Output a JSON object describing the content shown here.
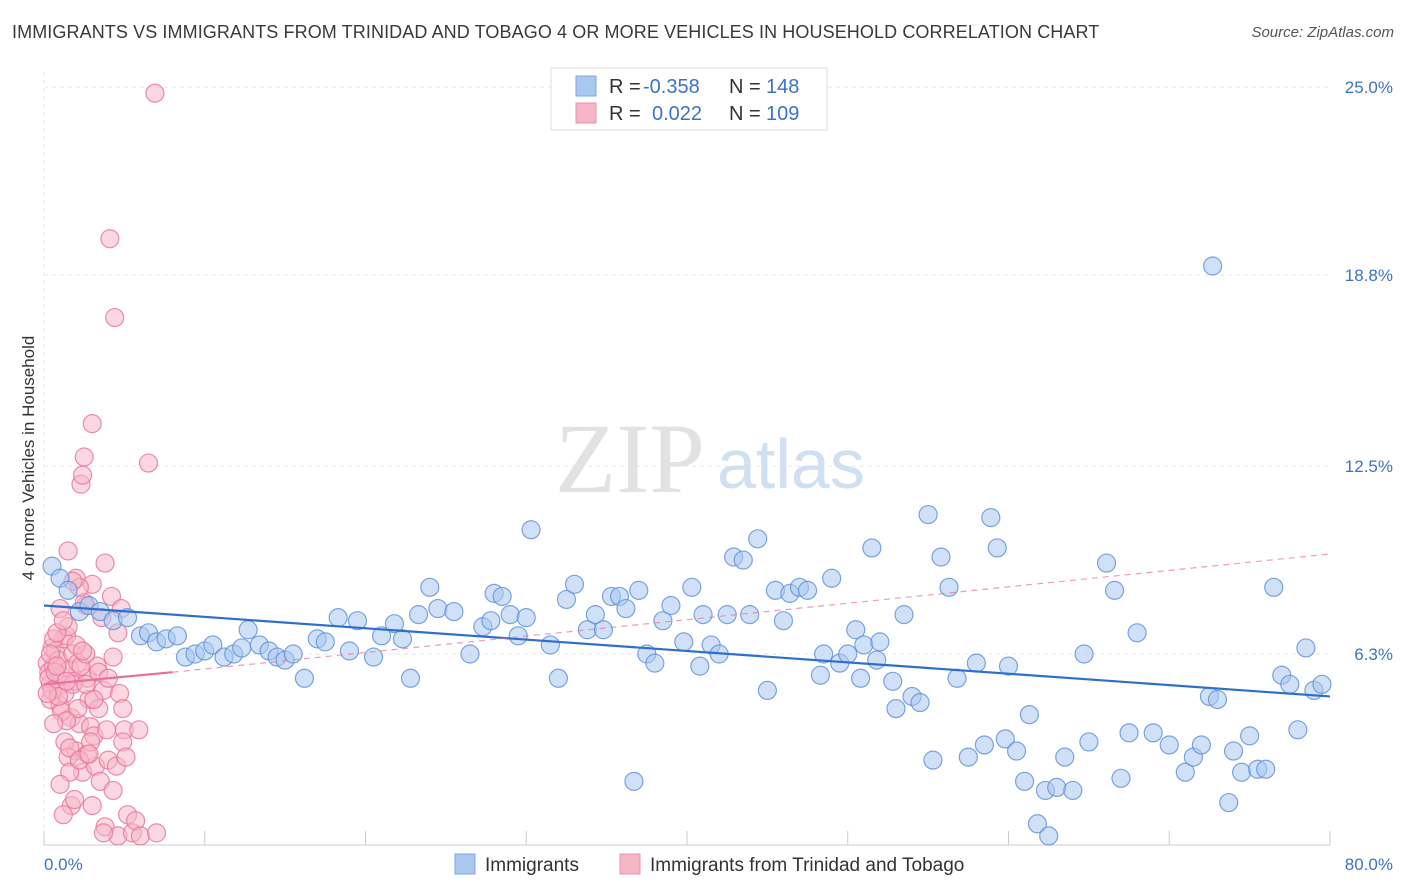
{
  "header": {
    "title": "IMMIGRANTS VS IMMIGRANTS FROM TRINIDAD AND TOBAGO 4 OR MORE VEHICLES IN HOUSEHOLD CORRELATION CHART",
    "source": "Source: ZipAtlas.com"
  },
  "watermark": {
    "zip": "ZIP",
    "atlas": "atlas"
  },
  "stats": [
    {
      "r_label": "R =",
      "r_value": "-0.358",
      "n_label": "N =",
      "n_value": "148",
      "color": "#a9c8f0"
    },
    {
      "r_label": "R =",
      "r_value": "0.022",
      "n_label": "N =",
      "n_value": "109",
      "color": "#f5b6c8"
    }
  ],
  "chart_data": {
    "type": "scatter",
    "title": "IMMIGRANTS VS IMMIGRANTS FROM TRINIDAD AND TOBAGO 4 OR MORE VEHICLES IN HOUSEHOLD CORRELATION CHART",
    "xlabel": "",
    "ylabel": "4 or more Vehicles in Household",
    "xlim": [
      0,
      80
    ],
    "ylim": [
      0,
      25.5
    ],
    "x_tick_labels": [
      "0.0%",
      "80.0%"
    ],
    "y_ticks": [
      6.3,
      12.5,
      18.8,
      25.0
    ],
    "y_tick_labels": [
      "6.3%",
      "12.5%",
      "18.8%",
      "25.0%"
    ],
    "grid": true,
    "legend_position": "bottom-center",
    "series": [
      {
        "name": "Immigrants",
        "color": "#5b8fd9",
        "fill": "#a9c8f0",
        "trend": {
          "x": [
            0,
            80
          ],
          "y": [
            7.9,
            4.9
          ]
        },
        "points": [
          [
            0.5,
            9.2
          ],
          [
            1.0,
            8.8
          ],
          [
            1.5,
            8.4
          ],
          [
            2.2,
            7.7
          ],
          [
            2.8,
            7.9
          ],
          [
            3.5,
            7.7
          ],
          [
            4.3,
            7.4
          ],
          [
            5.2,
            7.5
          ],
          [
            6.0,
            6.9
          ],
          [
            6.5,
            7.0
          ],
          [
            7.0,
            6.7
          ],
          [
            7.6,
            6.8
          ],
          [
            8.3,
            6.9
          ],
          [
            8.8,
            6.2
          ],
          [
            9.4,
            6.3
          ],
          [
            10.0,
            6.4
          ],
          [
            10.5,
            6.6
          ],
          [
            11.2,
            6.2
          ],
          [
            11.8,
            6.3
          ],
          [
            12.3,
            6.5
          ],
          [
            12.7,
            7.1
          ],
          [
            13.4,
            6.6
          ],
          [
            14.0,
            6.4
          ],
          [
            14.5,
            6.2
          ],
          [
            15.0,
            6.1
          ],
          [
            15.5,
            6.3
          ],
          [
            16.2,
            5.5
          ],
          [
            17.0,
            6.8
          ],
          [
            17.5,
            6.7
          ],
          [
            18.3,
            7.5
          ],
          [
            19.0,
            6.4
          ],
          [
            19.5,
            7.4
          ],
          [
            20.5,
            6.2
          ],
          [
            21.0,
            6.9
          ],
          [
            21.8,
            7.3
          ],
          [
            22.3,
            6.8
          ],
          [
            22.8,
            5.5
          ],
          [
            23.3,
            7.6
          ],
          [
            24.0,
            8.5
          ],
          [
            24.5,
            7.8
          ],
          [
            25.5,
            7.7
          ],
          [
            26.5,
            6.3
          ],
          [
            27.3,
            7.2
          ],
          [
            27.8,
            7.4
          ],
          [
            28.0,
            8.3
          ],
          [
            28.5,
            8.2
          ],
          [
            29.0,
            7.6
          ],
          [
            29.5,
            6.9
          ],
          [
            30.0,
            7.5
          ],
          [
            30.3,
            10.4
          ],
          [
            31.5,
            6.6
          ],
          [
            32.0,
            5.5
          ],
          [
            32.5,
            8.1
          ],
          [
            33.0,
            8.6
          ],
          [
            33.8,
            7.1
          ],
          [
            34.3,
            7.6
          ],
          [
            34.8,
            7.1
          ],
          [
            35.3,
            8.2
          ],
          [
            35.8,
            8.2
          ],
          [
            36.2,
            7.8
          ],
          [
            37.0,
            8.4
          ],
          [
            37.5,
            6.3
          ],
          [
            38.0,
            6.0
          ],
          [
            38.5,
            7.4
          ],
          [
            39.0,
            7.9
          ],
          [
            39.8,
            6.7
          ],
          [
            40.3,
            8.5
          ],
          [
            40.8,
            5.9
          ],
          [
            41.0,
            7.6
          ],
          [
            41.5,
            6.6
          ],
          [
            42.0,
            6.3
          ],
          [
            42.5,
            7.6
          ],
          [
            42.9,
            9.5
          ],
          [
            43.5,
            9.4
          ],
          [
            43.9,
            7.6
          ],
          [
            44.4,
            10.1
          ],
          [
            45.0,
            5.1
          ],
          [
            45.5,
            8.4
          ],
          [
            46.0,
            7.4
          ],
          [
            46.4,
            8.3
          ],
          [
            47.0,
            8.5
          ],
          [
            47.5,
            8.4
          ],
          [
            48.3,
            5.6
          ],
          [
            48.5,
            6.3
          ],
          [
            49.0,
            8.8
          ],
          [
            49.5,
            6.0
          ],
          [
            50.0,
            6.3
          ],
          [
            50.5,
            7.1
          ],
          [
            50.8,
            5.5
          ],
          [
            51.0,
            6.6
          ],
          [
            51.5,
            9.8
          ],
          [
            51.8,
            6.1
          ],
          [
            52.0,
            6.7
          ],
          [
            52.8,
            5.4
          ],
          [
            53.0,
            4.5
          ],
          [
            53.5,
            7.6
          ],
          [
            54.0,
            4.9
          ],
          [
            54.5,
            4.7
          ],
          [
            55.0,
            10.9
          ],
          [
            55.3,
            2.8
          ],
          [
            55.8,
            9.5
          ],
          [
            56.3,
            8.5
          ],
          [
            56.8,
            5.5
          ],
          [
            57.5,
            2.9
          ],
          [
            58.0,
            6.0
          ],
          [
            58.5,
            3.3
          ],
          [
            58.9,
            10.8
          ],
          [
            59.3,
            9.8
          ],
          [
            59.8,
            3.5
          ],
          [
            60.5,
            3.1
          ],
          [
            61.0,
            2.1
          ],
          [
            61.3,
            4.3
          ],
          [
            61.8,
            0.7
          ],
          [
            62.3,
            1.8
          ],
          [
            62.5,
            0.3
          ],
          [
            63.0,
            1.9
          ],
          [
            63.5,
            2.9
          ],
          [
            64.0,
            1.8
          ],
          [
            64.7,
            6.3
          ],
          [
            65.0,
            3.4
          ],
          [
            66.1,
            9.3
          ],
          [
            66.6,
            8.4
          ],
          [
            67.0,
            2.2
          ],
          [
            67.5,
            3.7
          ],
          [
            68.0,
            7.0
          ],
          [
            69.0,
            3.7
          ],
          [
            70.0,
            3.3
          ],
          [
            71.0,
            2.4
          ],
          [
            71.5,
            2.9
          ],
          [
            72.0,
            3.3
          ],
          [
            72.5,
            4.9
          ],
          [
            73.0,
            4.8
          ],
          [
            73.7,
            1.4
          ],
          [
            74.0,
            3.1
          ],
          [
            74.5,
            2.4
          ],
          [
            75.0,
            3.6
          ],
          [
            75.5,
            2.5
          ],
          [
            76.0,
            2.5
          ],
          [
            76.5,
            8.5
          ],
          [
            77.0,
            5.6
          ],
          [
            77.5,
            5.3
          ],
          [
            78.0,
            3.8
          ],
          [
            78.5,
            6.5
          ],
          [
            79.0,
            5.1
          ],
          [
            72.7,
            19.1
          ],
          [
            79.5,
            5.3
          ],
          [
            60.0,
            5.9
          ],
          [
            36.7,
            2.1
          ]
        ]
      },
      {
        "name": "Immigrants from Trinidad and Tobago",
        "color": "#e8709a",
        "fill": "#f5b6c8",
        "trend": {
          "x": [
            0,
            8
          ],
          "y": [
            5.3,
            5.7
          ]
        },
        "trend_ext": {
          "x": [
            8,
            80
          ],
          "y": [
            5.7,
            9.6
          ]
        },
        "points": [
          [
            0.2,
            6.0
          ],
          [
            0.3,
            5.7
          ],
          [
            0.4,
            5.3
          ],
          [
            0.5,
            6.5
          ],
          [
            0.6,
            5.9
          ],
          [
            0.7,
            6.4
          ],
          [
            0.8,
            5.2
          ],
          [
            0.9,
            6.1
          ],
          [
            1.0,
            7.8
          ],
          [
            1.0,
            4.6
          ],
          [
            1.1,
            5.6
          ],
          [
            1.2,
            6.8
          ],
          [
            1.3,
            5.0
          ],
          [
            1.4,
            6.9
          ],
          [
            1.5,
            9.7
          ],
          [
            1.5,
            7.2
          ],
          [
            1.6,
            5.8
          ],
          [
            1.7,
            4.2
          ],
          [
            1.8,
            6.3
          ],
          [
            1.9,
            5.4
          ],
          [
            2.0,
            8.8
          ],
          [
            2.0,
            3.1
          ],
          [
            2.1,
            6.0
          ],
          [
            2.2,
            4.0
          ],
          [
            2.3,
            11.9
          ],
          [
            2.4,
            12.2
          ],
          [
            2.4,
            2.4
          ],
          [
            2.5,
            12.8
          ],
          [
            2.6,
            7.9
          ],
          [
            2.7,
            5.5
          ],
          [
            2.8,
            4.8
          ],
          [
            2.9,
            3.9
          ],
          [
            3.0,
            13.9
          ],
          [
            3.0,
            8.6
          ],
          [
            3.1,
            3.6
          ],
          [
            3.2,
            2.6
          ],
          [
            3.3,
            5.9
          ],
          [
            3.4,
            4.5
          ],
          [
            3.5,
            2.1
          ],
          [
            3.6,
            7.5
          ],
          [
            3.7,
            5.1
          ],
          [
            3.8,
            9.3
          ],
          [
            3.8,
            0.6
          ],
          [
            3.9,
            3.8
          ],
          [
            4.0,
            2.8
          ],
          [
            4.1,
            20.0
          ],
          [
            4.2,
            8.2
          ],
          [
            4.3,
            6.2
          ],
          [
            4.4,
            17.4
          ],
          [
            4.5,
            2.6
          ],
          [
            4.6,
            0.3
          ],
          [
            4.7,
            5.0
          ],
          [
            4.8,
            7.8
          ],
          [
            4.9,
            4.5
          ],
          [
            5.0,
            3.8
          ],
          [
            5.2,
            1.0
          ],
          [
            5.5,
            0.4
          ],
          [
            5.7,
            0.8
          ],
          [
            5.9,
            3.8
          ],
          [
            6.0,
            0.3
          ],
          [
            6.5,
            12.6
          ],
          [
            7.0,
            0.4
          ],
          [
            6.9,
            24.8
          ],
          [
            0.4,
            4.8
          ],
          [
            0.6,
            6.8
          ],
          [
            0.8,
            7.0
          ],
          [
            1.1,
            4.4
          ],
          [
            1.3,
            3.4
          ],
          [
            1.5,
            2.9
          ],
          [
            1.7,
            1.3
          ],
          [
            1.9,
            1.5
          ],
          [
            2.1,
            4.5
          ],
          [
            2.3,
            5.9
          ],
          [
            2.5,
            8.0
          ],
          [
            2.7,
            3.0
          ],
          [
            2.9,
            3.4
          ],
          [
            0.3,
            5.5
          ],
          [
            0.5,
            5.1
          ],
          [
            0.7,
            5.7
          ],
          [
            0.9,
            4.9
          ],
          [
            1.2,
            1.0
          ],
          [
            1.4,
            4.1
          ],
          [
            1.6,
            2.4
          ],
          [
            1.8,
            5.3
          ],
          [
            2.2,
            8.5
          ],
          [
            2.6,
            6.3
          ],
          [
            3.1,
            4.8
          ],
          [
            3.4,
            5.7
          ],
          [
            3.7,
            0.4
          ],
          [
            4.0,
            5.5
          ],
          [
            4.3,
            1.8
          ],
          [
            4.6,
            7.0
          ],
          [
            4.9,
            3.4
          ],
          [
            5.1,
            2.9
          ],
          [
            0.2,
            5.0
          ],
          [
            0.4,
            6.3
          ],
          [
            0.6,
            4.0
          ],
          [
            0.8,
            5.9
          ],
          [
            1.0,
            2.0
          ],
          [
            1.2,
            7.4
          ],
          [
            1.4,
            5.4
          ],
          [
            1.6,
            3.2
          ],
          [
            1.8,
            8.7
          ],
          [
            2.0,
            6.6
          ],
          [
            2.2,
            2.8
          ],
          [
            2.4,
            6.4
          ],
          [
            2.6,
            5.3
          ],
          [
            2.8,
            3.0
          ],
          [
            3.0,
            1.3
          ]
        ]
      }
    ]
  },
  "legend": {
    "items": [
      {
        "label": "Immigrants",
        "color": "#a9c8f0"
      },
      {
        "label": "Immigrants from Trinidad and Tobago",
        "color": "#f5b6c8"
      }
    ]
  }
}
